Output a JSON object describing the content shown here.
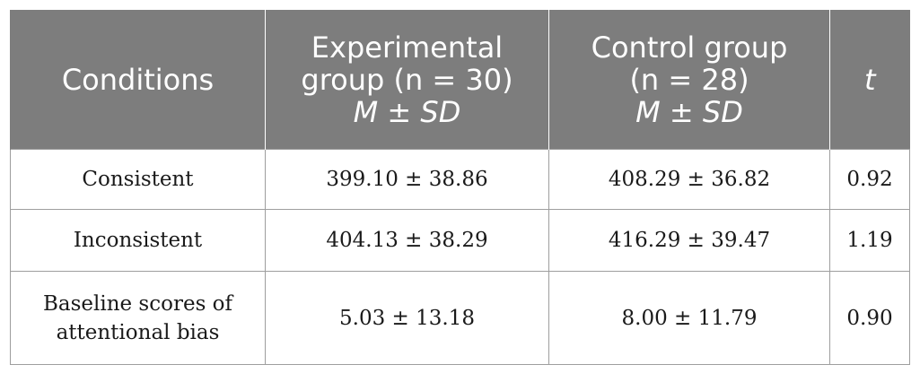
{
  "table": {
    "headers": {
      "conditions": "Conditions",
      "experimental": {
        "line1": "Experimental",
        "line2": "group (n = 30)",
        "stat": "M ± SD"
      },
      "control": {
        "line1": "Control group",
        "line2": "(n = 28)",
        "stat": "M ± SD"
      },
      "t": "t"
    },
    "rows": [
      {
        "condition": "Consistent",
        "experimental": "399.10 ± 38.86",
        "control": "408.29 ± 36.82",
        "t": "0.92"
      },
      {
        "condition": "Inconsistent",
        "experimental": "404.13 ± 38.29",
        "control": "416.29 ± 39.47",
        "t": "1.19"
      },
      {
        "condition_line1": "Baseline scores of",
        "condition_line2": "attentional bias",
        "experimental": "5.03 ± 13.18",
        "control": "8.00 ± 11.79",
        "t": "0.90"
      }
    ]
  },
  "colors": {
    "header_bg": "#7d7d7d",
    "header_text": "#ffffff",
    "border": "#9e9e9e"
  }
}
